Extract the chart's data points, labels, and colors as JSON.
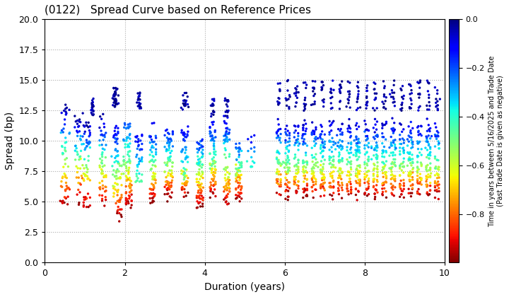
{
  "title": "(0122)   Spread Curve based on Reference Prices",
  "xlabel": "Duration (years)",
  "ylabel": "Spread (bp)",
  "colorbar_label": "Time in years between 5/16/2025 and Trade Date\n(Past Trade Date is given as negative)",
  "xlim": [
    0,
    10
  ],
  "ylim": [
    0.0,
    20.0
  ],
  "yticks": [
    0.0,
    2.5,
    5.0,
    7.5,
    10.0,
    12.5,
    15.0,
    17.5,
    20.0
  ],
  "xticks": [
    0,
    2,
    4,
    6,
    8,
    10
  ],
  "cmap": "jet_r",
  "clim": [
    -1.0,
    0.0
  ],
  "cticks": [
    0.0,
    -0.2,
    -0.4,
    -0.6,
    -0.8
  ],
  "dot_size": 6,
  "background_color": "#ffffff",
  "grid_color": "#aaaaaa",
  "seed": 42
}
